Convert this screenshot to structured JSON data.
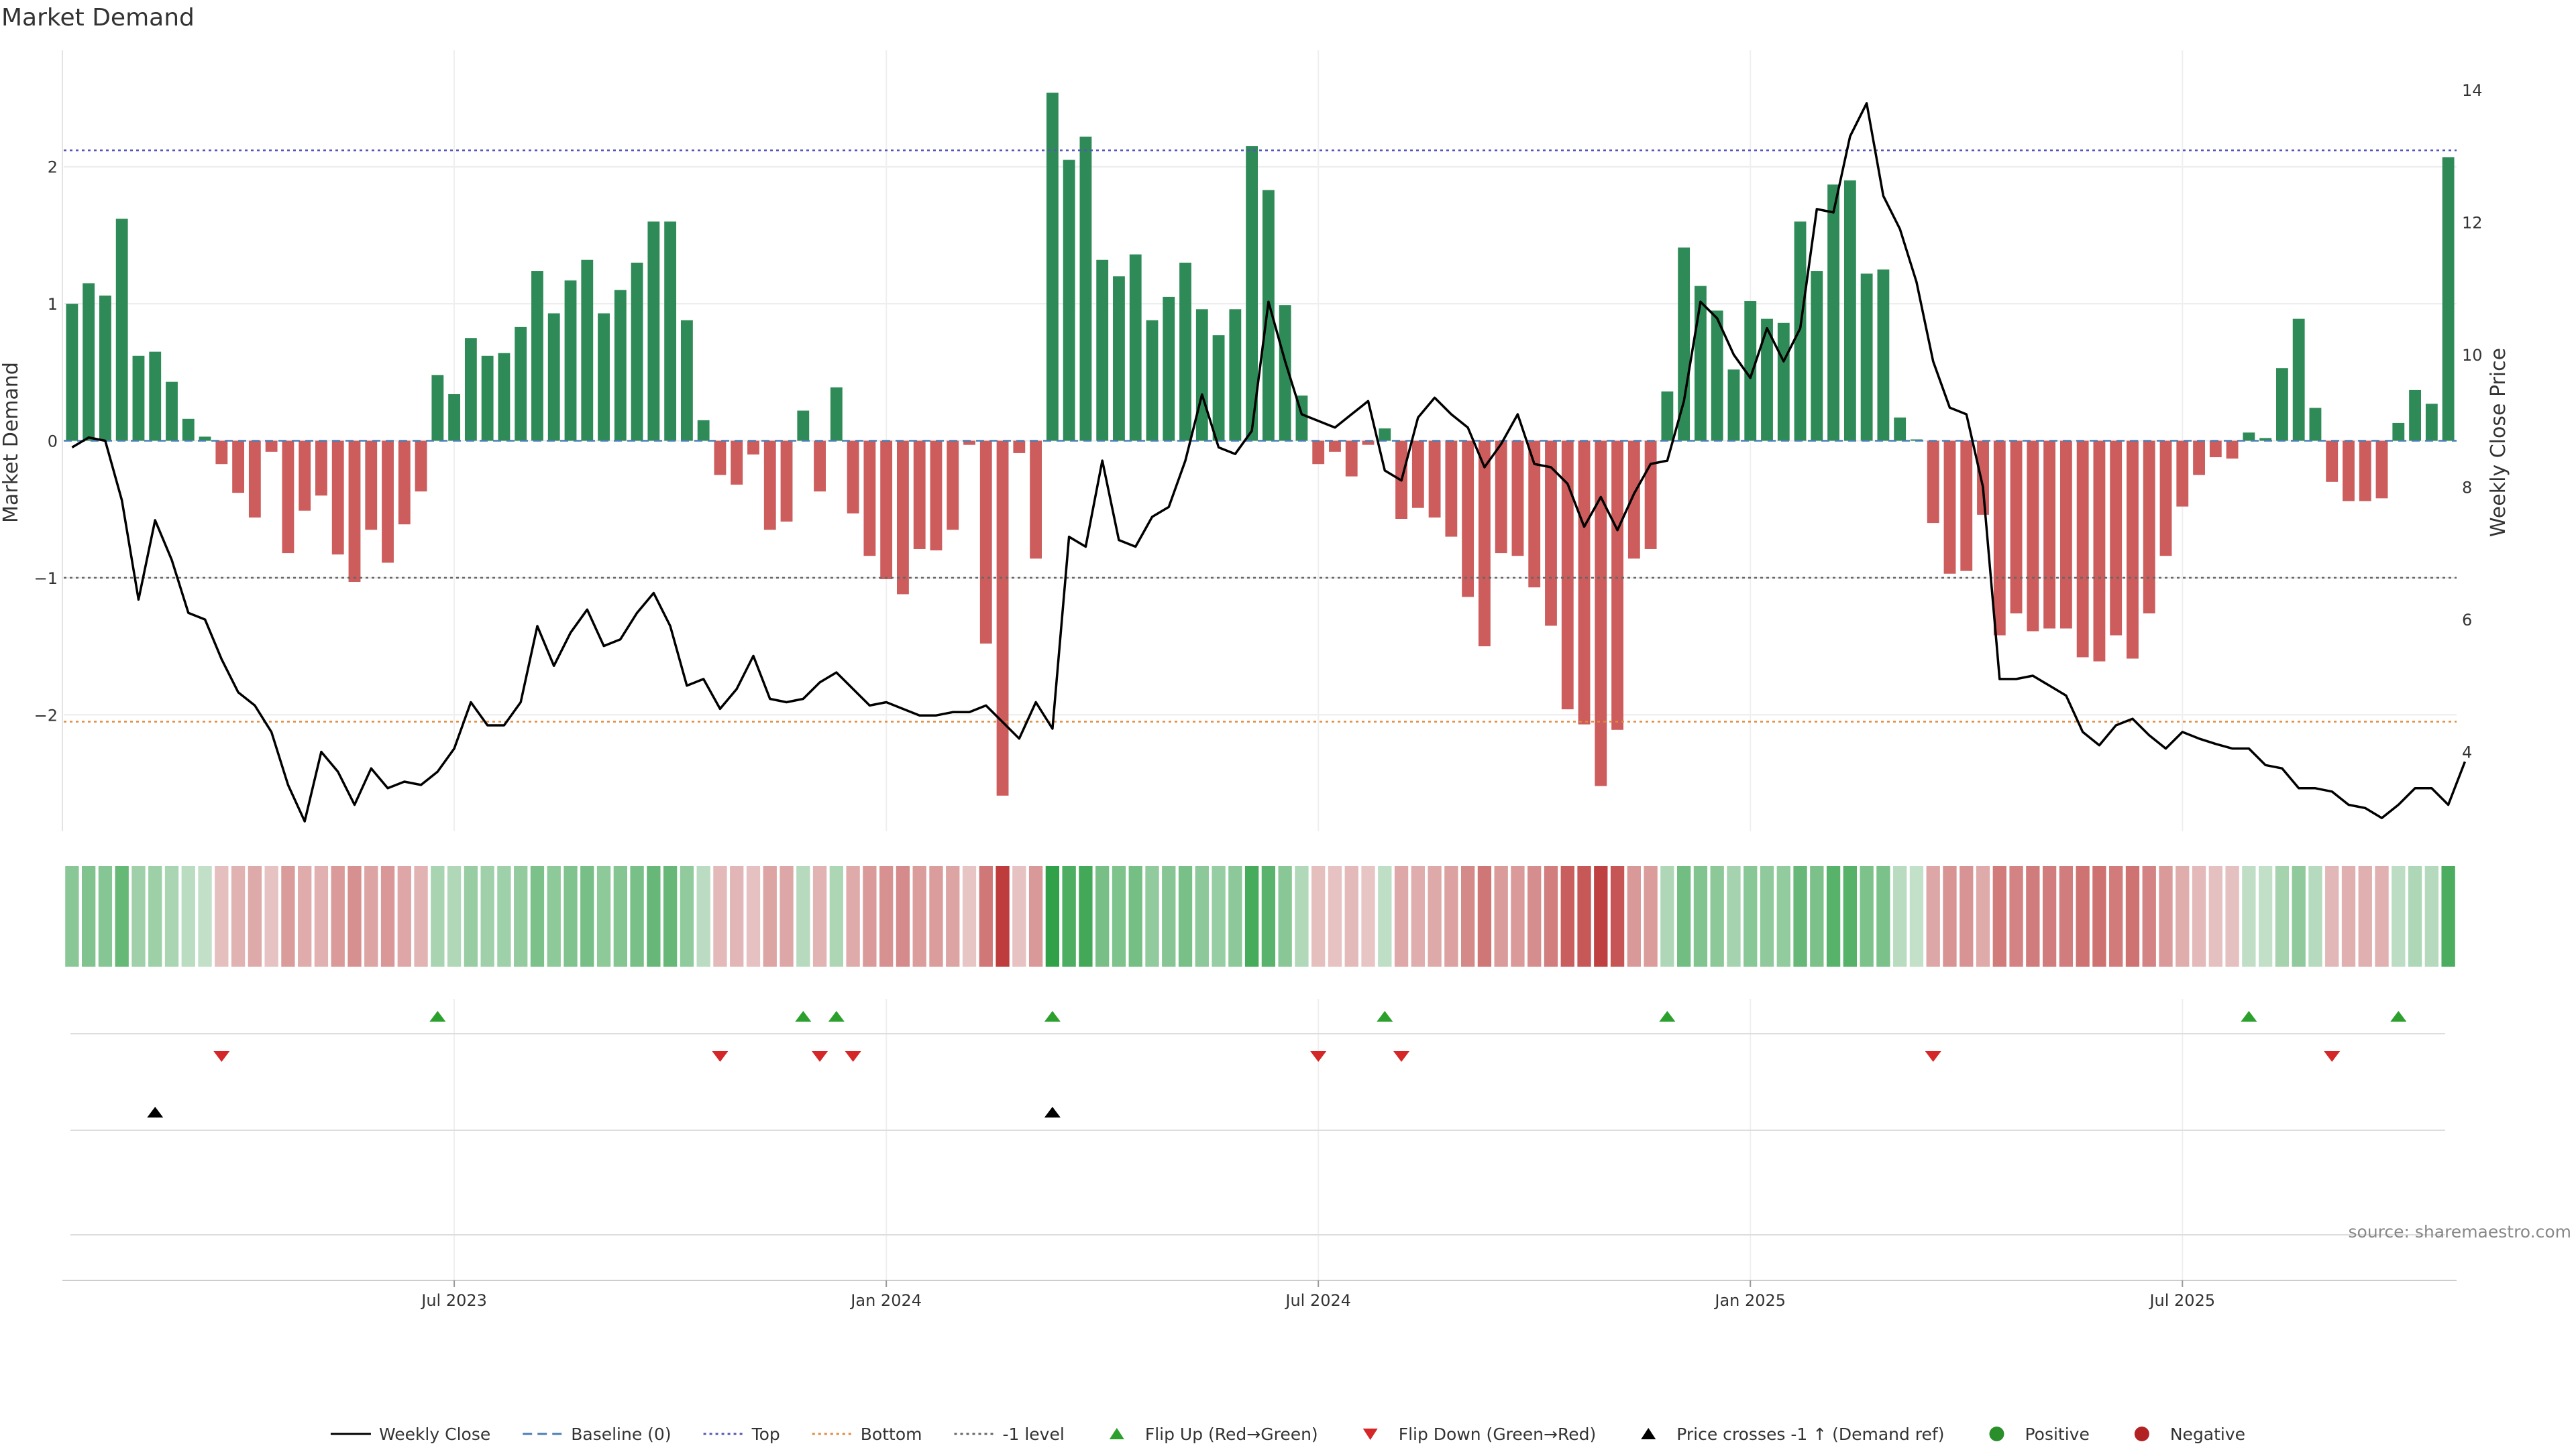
{
  "chart_data": {
    "type": "bar",
    "title": "Market Demand",
    "ylabel": "Market Demand",
    "y2label": "Weekly Close Price",
    "ylim": [
      -2.85,
      2.85
    ],
    "y2lim": [
      2.8,
      14.6
    ],
    "yticks": [
      2,
      1,
      0,
      -1,
      -2
    ],
    "yticklabels": [
      "2",
      "1",
      "0",
      "−1",
      "−2"
    ],
    "y2ticks": [
      14,
      12,
      10,
      8,
      6,
      4
    ],
    "xticklabels": [
      "Jul 2023",
      "Jan 2024",
      "Jul 2024",
      "Jan 2025",
      "Jul 2025"
    ],
    "xtick_week_index": [
      23,
      49,
      75,
      101,
      127
    ],
    "reference_lines": {
      "top": 2.12,
      "bottom": -2.05,
      "minus_one": -1.0,
      "baseline": 0
    },
    "demand": [
      1.0,
      1.15,
      1.06,
      1.62,
      0.62,
      0.65,
      0.43,
      0.16,
      0.03,
      -0.17,
      -0.38,
      -0.56,
      -0.08,
      -0.82,
      -0.51,
      -0.4,
      -0.83,
      -1.03,
      -0.65,
      -0.89,
      -0.61,
      -0.37,
      0.48,
      0.34,
      0.75,
      0.62,
      0.64,
      0.83,
      1.24,
      0.93,
      1.17,
      1.32,
      0.93,
      1.1,
      1.3,
      1.6,
      1.6,
      0.88,
      0.15,
      -0.25,
      -0.32,
      -0.1,
      -0.65,
      -0.59,
      0.22,
      -0.37,
      0.39,
      -0.53,
      -0.84,
      -1.01,
      -1.12,
      -0.79,
      -0.8,
      -0.65,
      -0.03,
      -1.48,
      -2.59,
      -0.09,
      -0.86,
      2.54,
      2.05,
      2.22,
      1.32,
      1.2,
      1.36,
      0.88,
      1.05,
      1.3,
      0.96,
      0.77,
      0.96,
      2.15,
      1.83,
      0.99,
      0.33,
      -0.17,
      -0.08,
      -0.26,
      -0.03,
      0.09,
      -0.57,
      -0.49,
      -0.56,
      -0.7,
      -1.14,
      -1.5,
      -0.82,
      -0.84,
      -1.07,
      -1.35,
      -1.96,
      -2.07,
      -2.52,
      -2.11,
      -0.86,
      -0.79,
      0.36,
      1.41,
      1.13,
      0.95,
      0.52,
      1.02,
      0.89,
      0.86,
      1.6,
      1.24,
      1.87,
      1.9,
      1.22,
      1.25,
      0.17,
      0.01,
      -0.6,
      -0.97,
      -0.95,
      -0.54,
      -1.42,
      -1.26,
      -1.39,
      -1.37,
      -1.37,
      -1.58,
      -1.61,
      -1.42,
      -1.59,
      -1.26,
      -0.84,
      -0.48,
      -0.25,
      -0.12,
      -0.13,
      0.06,
      0.02,
      0.53,
      0.89,
      0.24,
      -0.3,
      -0.44,
      -0.44,
      -0.42,
      0.13,
      0.37,
      0.27,
      2.07
    ],
    "price": [
      8.6,
      8.75,
      8.7,
      7.8,
      6.3,
      7.5,
      6.9,
      6.1,
      6.0,
      5.4,
      4.9,
      4.7,
      4.3,
      3.5,
      2.95,
      4.0,
      3.7,
      3.2,
      3.75,
      3.45,
      3.55,
      3.5,
      3.7,
      4.05,
      4.75,
      4.4,
      4.4,
      4.75,
      5.9,
      5.3,
      5.8,
      6.15,
      5.6,
      5.7,
      6.1,
      6.4,
      5.9,
      5.0,
      5.1,
      4.65,
      4.95,
      5.45,
      4.8,
      4.75,
      4.8,
      5.05,
      5.2,
      4.95,
      4.7,
      4.75,
      4.65,
      4.55,
      4.55,
      4.6,
      4.6,
      4.7,
      4.45,
      4.2,
      4.75,
      4.35,
      7.25,
      7.1,
      8.4,
      7.2,
      7.1,
      7.55,
      7.7,
      8.4,
      9.4,
      8.6,
      8.5,
      8.85,
      10.8,
      9.9,
      9.1,
      9.0,
      8.9,
      9.1,
      9.3,
      8.25,
      8.1,
      9.05,
      9.35,
      9.1,
      8.9,
      8.3,
      8.65,
      9.1,
      8.35,
      8.3,
      8.05,
      7.4,
      7.85,
      7.35,
      7.9,
      8.35,
      8.4,
      9.3,
      10.8,
      10.55,
      10.0,
      9.65,
      10.4,
      9.9,
      10.4,
      12.2,
      12.15,
      13.3,
      13.8,
      12.4,
      11.9,
      11.1,
      9.9,
      9.2,
      9.1,
      8.0,
      5.1,
      5.1,
      5.15,
      5.0,
      4.85,
      4.3,
      4.1,
      4.4,
      4.5,
      4.25,
      4.05,
      4.3,
      4.2,
      4.12,
      4.05,
      4.05,
      3.8,
      3.75,
      3.45,
      3.45,
      3.4,
      3.2,
      3.15,
      3.0,
      3.2,
      3.45,
      3.45,
      3.2,
      3.85
    ],
    "flip_up_weeks": [
      22,
      44,
      46,
      59,
      79,
      96,
      131,
      140
    ],
    "flip_down_weeks": [
      9,
      39,
      45,
      47,
      75,
      80,
      112,
      136
    ],
    "price_cross_weeks": [
      5,
      59
    ],
    "colors": {
      "positive_bar": "#2e8b57",
      "negative_bar": "#cd5c5c",
      "price_line": "#000000",
      "top_line": "#5555bb",
      "bottom_line": "#e08a3c",
      "minus_one_line": "#666666",
      "baseline_line": "#4a7fb5",
      "flip_up": "#2ca02c",
      "flip_down": "#d62728",
      "cross": "#000000",
      "positive_dot": "#2a8f2a",
      "negative_dot": "#b22222"
    }
  },
  "legend": [
    {
      "label": "Weekly Close",
      "kind": "line-solid",
      "color": "#000000"
    },
    {
      "label": "Baseline (0)",
      "kind": "line-dashed",
      "color": "#4a7fb5"
    },
    {
      "label": "Top",
      "kind": "line-dotted",
      "color": "#5555bb"
    },
    {
      "label": "Bottom",
      "kind": "line-dotted",
      "color": "#e08a3c"
    },
    {
      "label": "-1 level",
      "kind": "line-dotted",
      "color": "#666666"
    },
    {
      "label": "Flip Up (Red→Green)",
      "kind": "tri-up",
      "color": "#2ca02c"
    },
    {
      "label": "Flip Down (Green→Red)",
      "kind": "tri-down",
      "color": "#d62728"
    },
    {
      "label": "Price crosses -1 ↑ (Demand ref)",
      "kind": "tri-up",
      "color": "#000000"
    },
    {
      "label": "Positive",
      "kind": "dot",
      "color": "#2a8f2a"
    },
    {
      "label": "Negative",
      "kind": "dot",
      "color": "#b22222"
    }
  ],
  "source": "source: sharemaestro.com"
}
